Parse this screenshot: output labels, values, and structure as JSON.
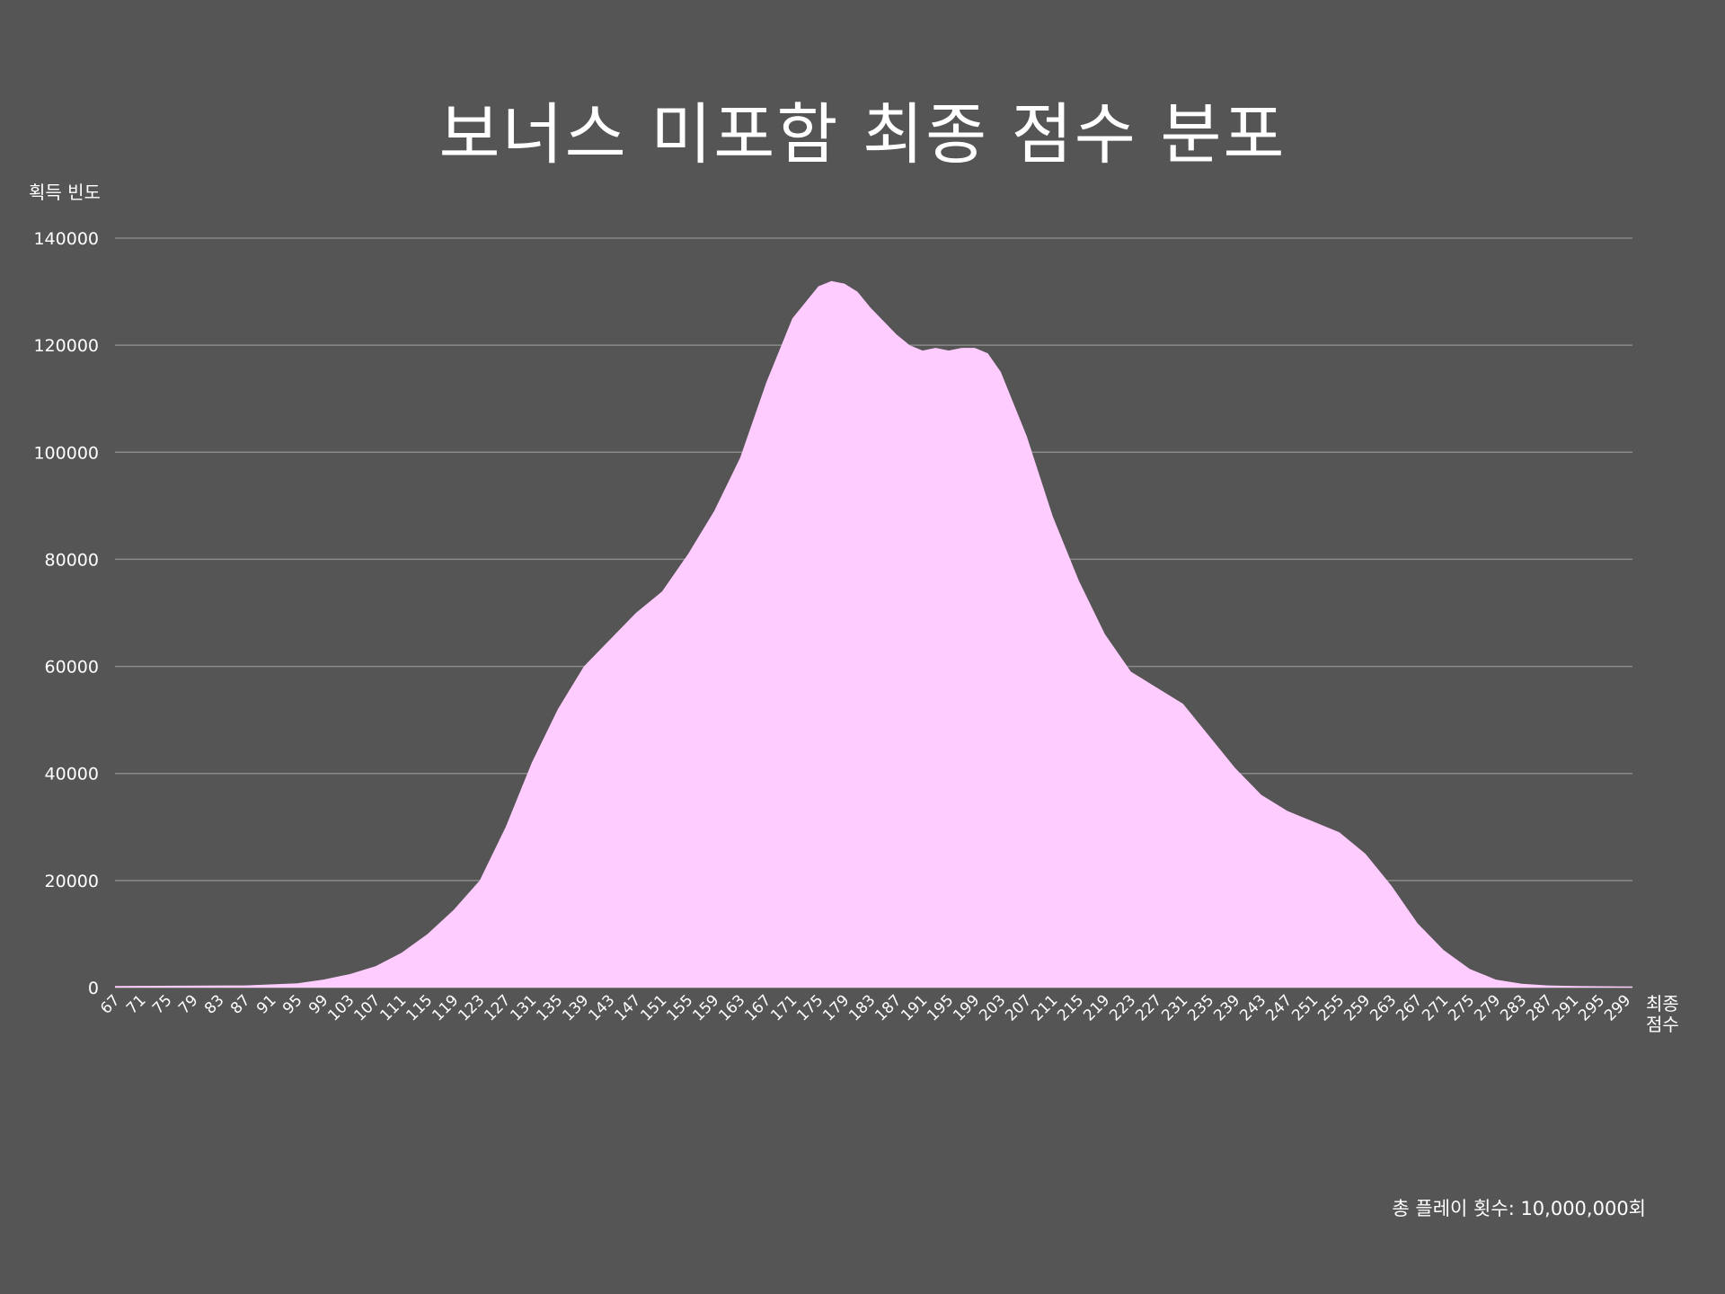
{
  "colors": {
    "background": "#555555",
    "area": "#ffccff",
    "grid": "#8a8a8a",
    "text": "#ffffff"
  },
  "footer": {
    "note": "총 플레이 횟수: 10,000,000회"
  },
  "chart_data": {
    "type": "area",
    "title": "보너스 미포함 최종 점수 분포",
    "xlabel": "최종 점수",
    "ylabel": "획득 빈도",
    "xlim": [
      67,
      300
    ],
    "ylim": [
      0,
      140000
    ],
    "yticks": [
      0,
      20000,
      40000,
      60000,
      80000,
      100000,
      120000,
      140000
    ],
    "xticks": [
      67,
      71,
      75,
      79,
      83,
      87,
      91,
      95,
      99,
      103,
      107,
      111,
      115,
      119,
      123,
      127,
      131,
      135,
      139,
      143,
      147,
      151,
      155,
      159,
      163,
      167,
      171,
      175,
      179,
      183,
      187,
      191,
      195,
      199,
      203,
      207,
      211,
      215,
      219,
      223,
      227,
      231,
      235,
      239,
      243,
      247,
      251,
      255,
      259,
      263,
      267,
      271,
      275,
      279,
      283,
      287,
      291,
      295,
      299
    ],
    "grid": "horizontal",
    "series": [
      {
        "x": [
          67,
          87,
          95,
          99,
          103,
          107,
          111,
          115,
          119,
          123,
          127,
          131,
          135,
          139,
          143,
          147,
          151,
          155,
          159,
          163,
          167,
          171,
          175,
          177,
          179,
          181,
          183,
          187,
          189,
          191,
          193,
          195,
          197,
          199,
          201,
          203,
          207,
          211,
          215,
          219,
          223,
          227,
          231,
          235,
          239,
          243,
          247,
          249,
          251,
          255,
          259,
          263,
          267,
          271,
          275,
          279,
          283,
          287,
          291,
          295,
          299,
          300
        ],
        "values": [
          300,
          400,
          800,
          1500,
          2500,
          4000,
          6500,
          10000,
          14500,
          20000,
          30000,
          42000,
          52000,
          60000,
          65000,
          70000,
          74000,
          81000,
          89000,
          99000,
          113000,
          125000,
          131000,
          132000,
          131500,
          130000,
          127000,
          122000,
          120000,
          119000,
          119500,
          119000,
          119500,
          119500,
          118500,
          115000,
          103000,
          88000,
          76000,
          66000,
          59000,
          56000,
          53000,
          47000,
          41000,
          36000,
          33000,
          32000,
          31000,
          29000,
          25000,
          19000,
          12000,
          7000,
          3500,
          1500,
          700,
          400,
          300,
          250,
          200,
          200
        ]
      }
    ]
  }
}
